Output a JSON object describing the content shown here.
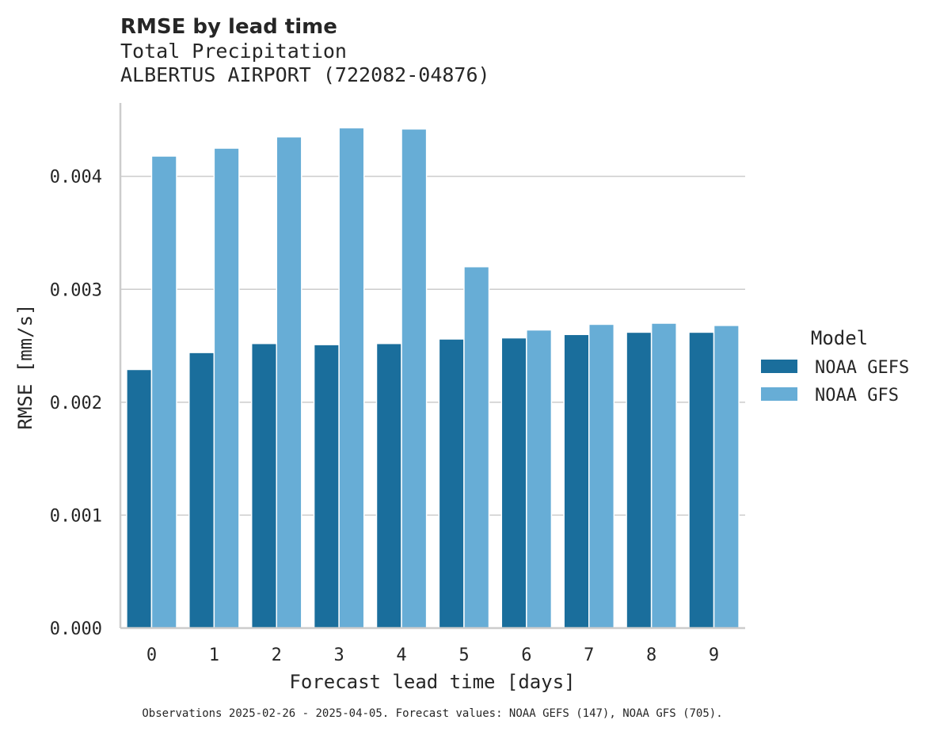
{
  "chart_data": {
    "type": "bar",
    "title": "RMSE by lead time",
    "subtitle_lines": [
      "Total Precipitation",
      "ALBERTUS AIRPORT (722082-04876)"
    ],
    "xlabel": "Forecast lead time [days]",
    "ylabel": "RMSE [mm/s]",
    "categories": [
      "0",
      "1",
      "2",
      "3",
      "4",
      "5",
      "6",
      "7",
      "8",
      "9"
    ],
    "ylim": [
      0,
      0.00465
    ],
    "yticks": [
      0,
      0.001,
      0.002,
      0.003,
      0.004
    ],
    "ytick_labels": [
      "0.000",
      "0.001",
      "0.002",
      "0.003",
      "0.004"
    ],
    "grid": "horizontal",
    "legend_title": "Model",
    "legend_position": "right",
    "series": [
      {
        "name": "NOAA GEFS",
        "color": "#1a6e9c",
        "values": [
          0.00229,
          0.00244,
          0.00252,
          0.00251,
          0.00252,
          0.00256,
          0.00257,
          0.0026,
          0.00262,
          0.00262
        ]
      },
      {
        "name": "NOAA GFS",
        "color": "#67add6",
        "values": [
          0.00418,
          0.00425,
          0.00435,
          0.00443,
          0.00442,
          0.0032,
          0.00264,
          0.00269,
          0.0027,
          0.00268
        ]
      }
    ],
    "footnote": "Observations 2025-02-26 - 2025-04-05. Forecast values: NOAA GEFS (147), NOAA GFS (705)."
  }
}
